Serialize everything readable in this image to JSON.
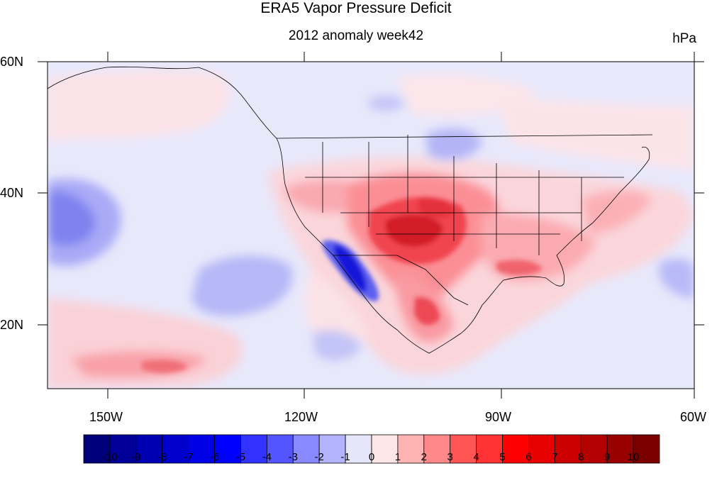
{
  "title": "ERA5 Vapor Pressure Deficit",
  "subtitle": "2012 anomaly week42",
  "units": "hPa",
  "lat_labels": [
    "60N",
    "40N",
    "20N"
  ],
  "lon_labels": [
    "150W",
    "120W",
    "90W",
    "60W"
  ],
  "colorbar": {
    "labels": [
      "-10",
      "-9",
      "-8",
      "-7",
      "-6",
      "-5",
      "-4",
      "-3",
      "-2",
      "-1",
      "0",
      "1",
      "2",
      "3",
      "4",
      "5",
      "6",
      "7",
      "8",
      "9",
      "10"
    ],
    "colors": [
      "#00007a",
      "#000099",
      "#0000b3",
      "#0000cc",
      "#0000e6",
      "#0000ff",
      "#3333ff",
      "#5555ff",
      "#8888ff",
      "#b3b3ff",
      "#e6e6fb",
      "#ffe6e6",
      "#ffb3b3",
      "#ff8888",
      "#ff5555",
      "#ff3333",
      "#ff0000",
      "#e60000",
      "#cc0000",
      "#b30000",
      "#990000",
      "#7a0000"
    ]
  }
}
